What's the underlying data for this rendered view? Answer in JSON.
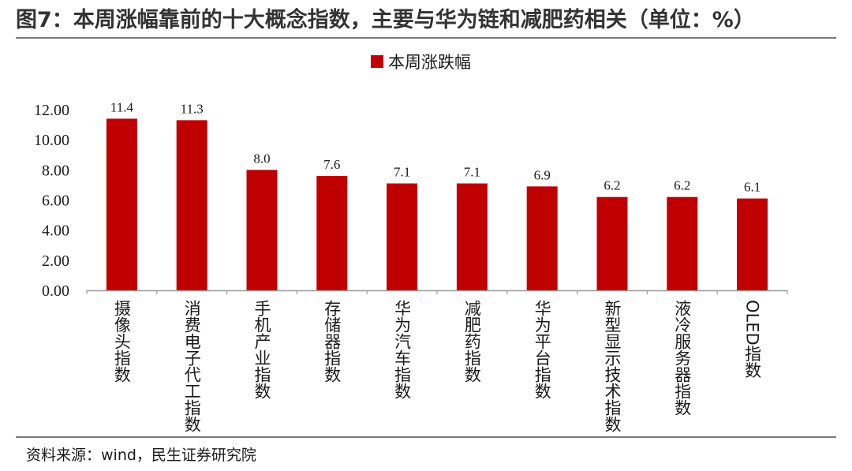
{
  "header": {
    "title": "图7：本周涨幅靠前的十大概念指数，主要与华为链和减肥药相关（单位：%）"
  },
  "footer": {
    "source": "资料来源：wind，民生证券研究院"
  },
  "colors": {
    "bar": "#c00000",
    "axis": "#999999",
    "rule": "#7a7a7a"
  },
  "chart_data": {
    "type": "bar",
    "title": "",
    "xlabel": "",
    "ylabel": "",
    "categories": [
      "摄像头指数",
      "消费电子代工指数",
      "手机产业指数",
      "存储器指数",
      "华为汽车指数",
      "减肥药指数",
      "华为平台指数",
      "新型显示技术指数",
      "液冷服务器指数",
      "OLED指数"
    ],
    "series": [
      {
        "name": "本周涨跌幅",
        "values": [
          11.4,
          11.3,
          8.0,
          7.6,
          7.1,
          7.1,
          6.9,
          6.2,
          6.2,
          6.1
        ]
      }
    ],
    "ylim": [
      0,
      12
    ],
    "yticks": [
      0,
      2,
      4,
      6,
      8,
      10,
      12
    ],
    "ytick_labels": [
      "0.00",
      "2.00",
      "4.00",
      "6.00",
      "8.00",
      "10.00",
      "12.00"
    ],
    "data_labels": [
      "11.4",
      "11.3",
      "8.0",
      "7.6",
      "7.1",
      "7.1",
      "6.9",
      "6.2",
      "6.2",
      "6.1"
    ],
    "grid": false,
    "legend": "top-center"
  }
}
